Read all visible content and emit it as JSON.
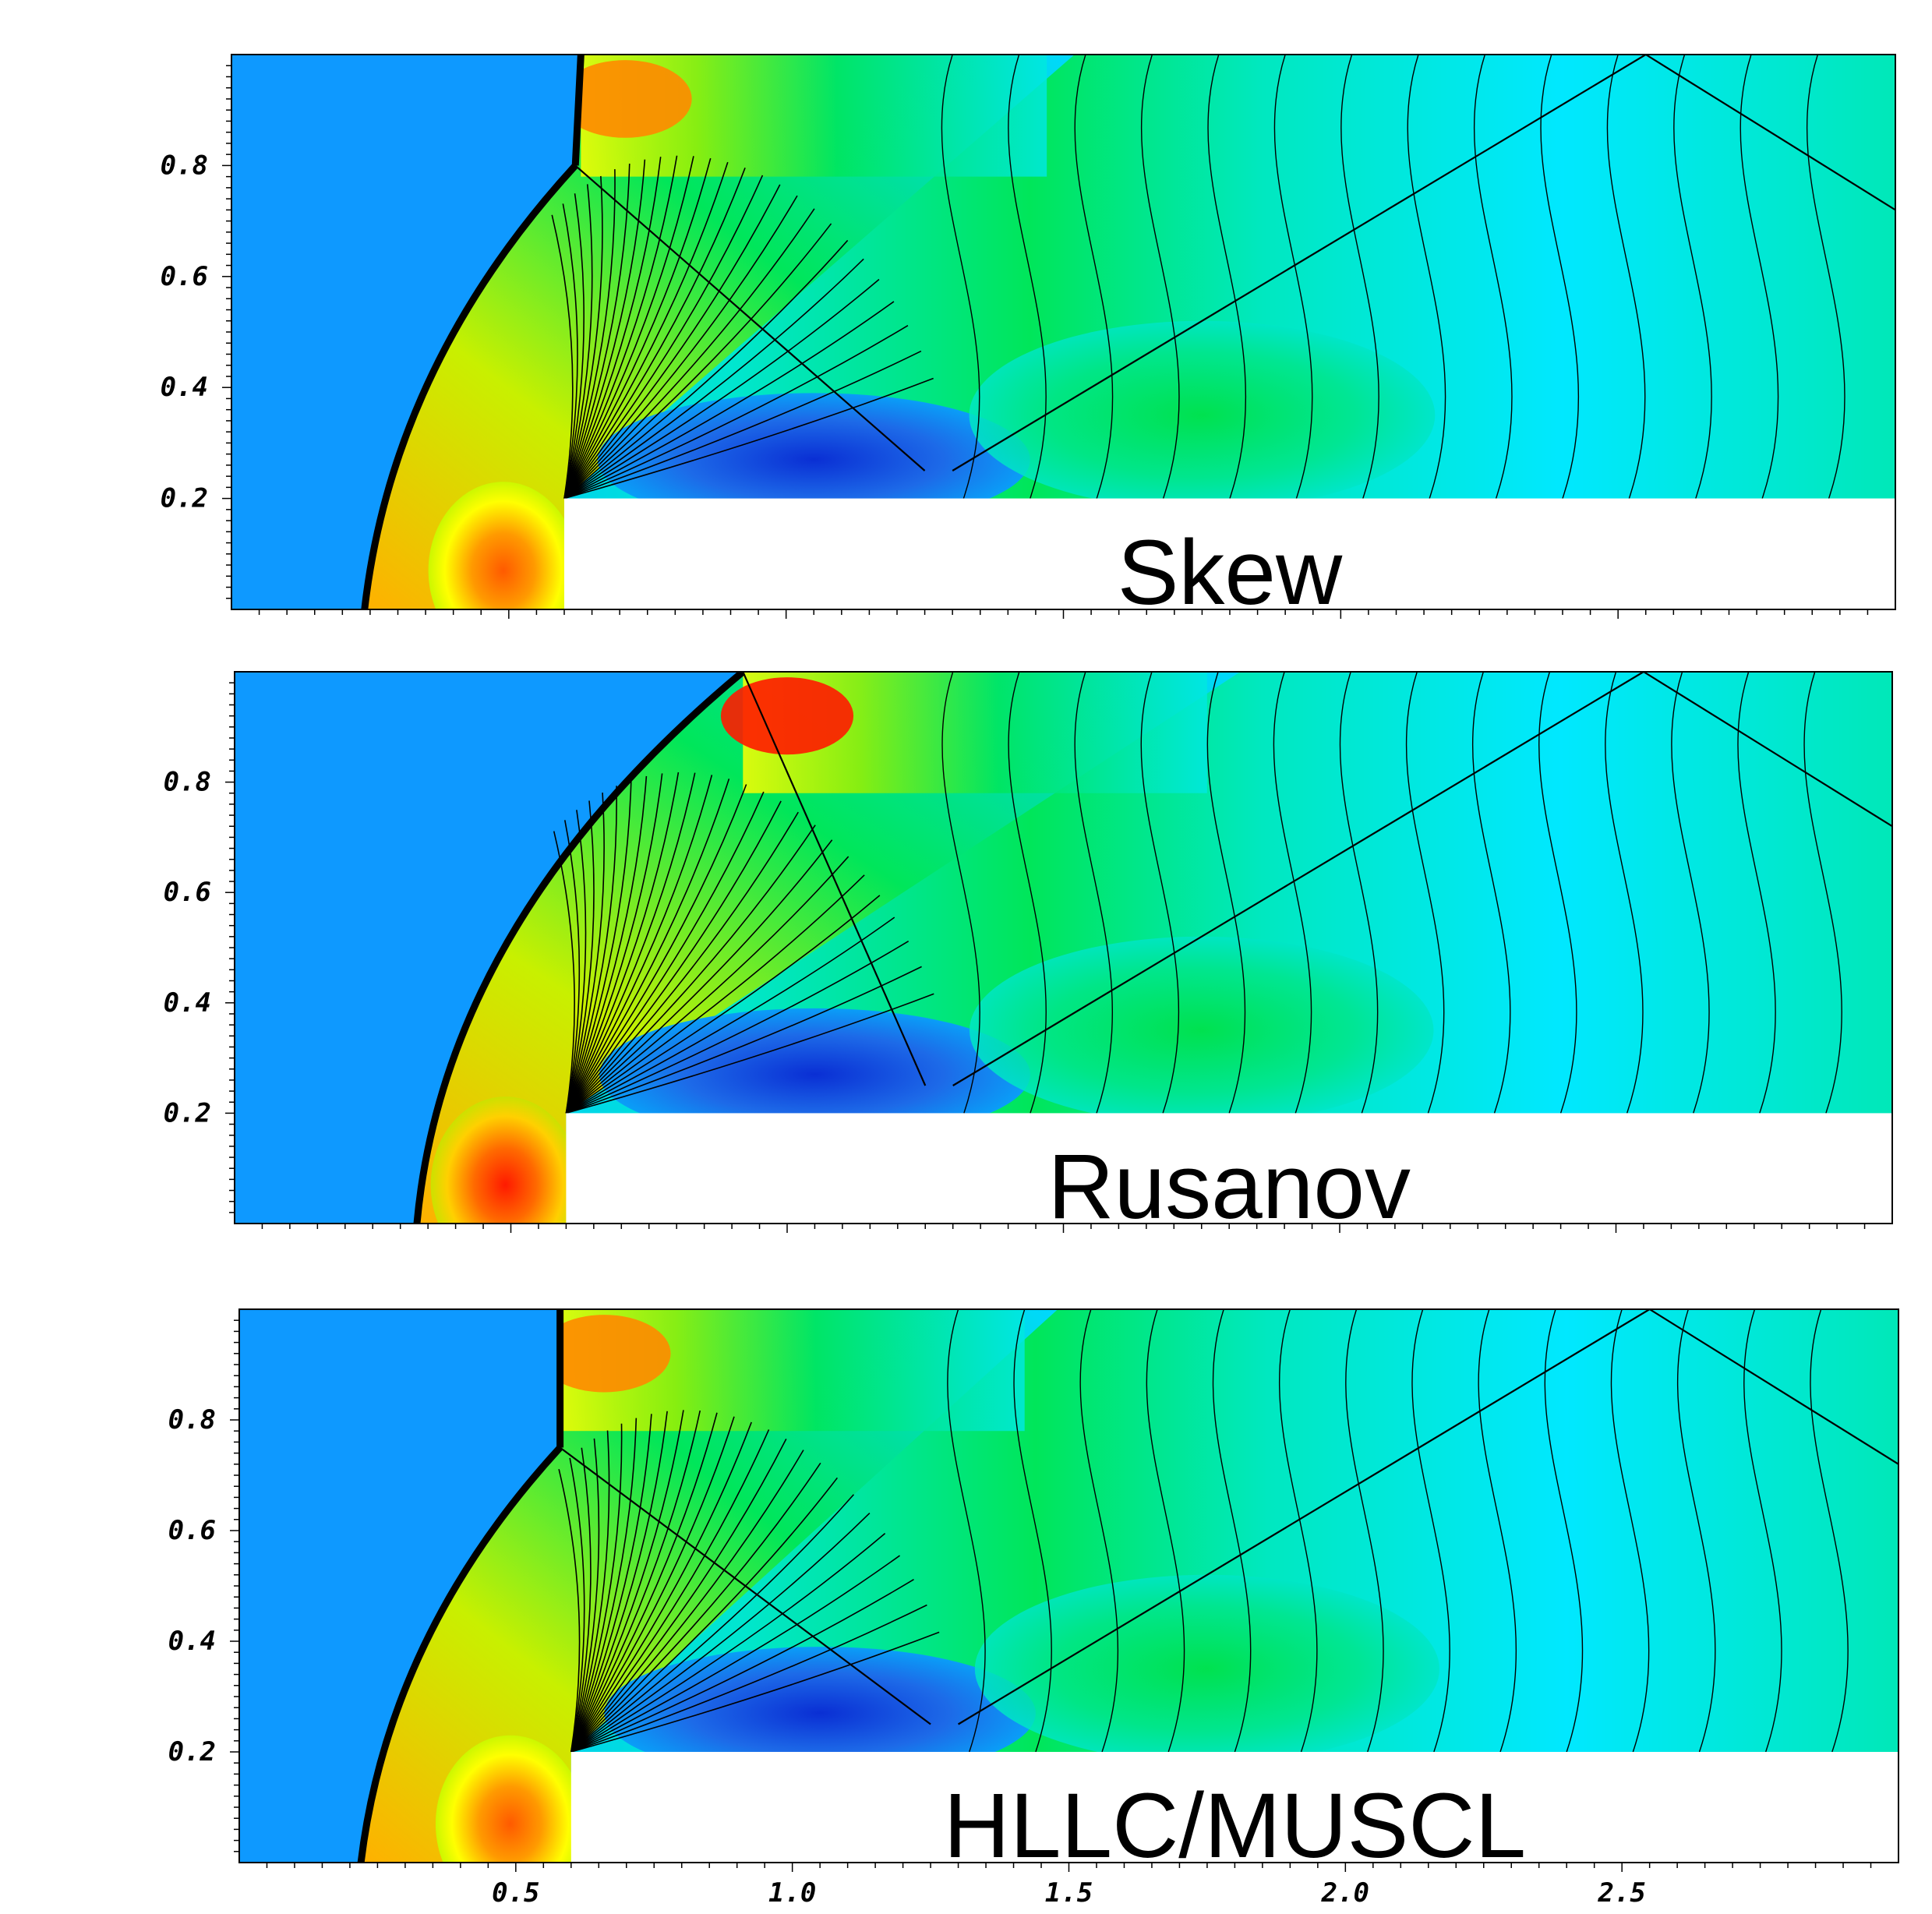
{
  "figure": {
    "description_of_axes": "shared x axis; y axis per panel",
    "x_ticks": [
      {
        "value": 0.5,
        "label": "0.5"
      },
      {
        "value": 1.0,
        "label": "1.0"
      },
      {
        "value": 1.5,
        "label": "1.5"
      },
      {
        "value": 2.0,
        "label": "2.0"
      },
      {
        "value": 2.5,
        "label": "2.5"
      }
    ],
    "y_ticks": [
      {
        "value": 0.2,
        "label": "0.2"
      },
      {
        "value": 0.4,
        "label": "0.4"
      },
      {
        "value": 0.6,
        "label": "0.6"
      },
      {
        "value": 0.8,
        "label": "0.8"
      }
    ]
  },
  "chart_data": [
    {
      "type": "heatmap",
      "panel": "top",
      "label": "Skew",
      "xlim": [
        0,
        3
      ],
      "ylim": [
        0,
        1
      ],
      "step": {
        "x_start": 0.6,
        "height": 0.2
      },
      "colormap": [
        "#0a2fd4",
        "#1d74ee",
        "#00e8ff",
        "#00e65a",
        "#9ef000",
        "#ffff00",
        "#ff9a00",
        "#ff1a00"
      ],
      "features": {
        "mach_stem_x": 0.63,
        "triple_point_y": 0.8
      }
    },
    {
      "type": "heatmap",
      "panel": "middle",
      "label": "Rusanov",
      "xlim": [
        0,
        3
      ],
      "ylim": [
        0,
        1
      ],
      "step": {
        "x_start": 0.6,
        "height": 0.2
      },
      "colormap": [
        "#0a2fd4",
        "#1d74ee",
        "#00e8ff",
        "#00e65a",
        "#9ef000",
        "#ffff00",
        "#ff9a00",
        "#ff1a00"
      ],
      "features": {
        "shock_wall_reflection_x": 0.92
      }
    },
    {
      "type": "heatmap",
      "panel": "bottom",
      "label": "HLLC/MUSCL",
      "xlim": [
        0,
        3
      ],
      "ylim": [
        0,
        1
      ],
      "step": {
        "x_start": 0.6,
        "height": 0.2
      },
      "colormap": [
        "#0a2fd4",
        "#1d74ee",
        "#00e8ff",
        "#00e65a",
        "#9ef000",
        "#ffff00",
        "#ff9a00",
        "#ff1a00"
      ],
      "features": {
        "mach_stem_x": 0.58,
        "triple_point_y": 0.75
      }
    }
  ]
}
